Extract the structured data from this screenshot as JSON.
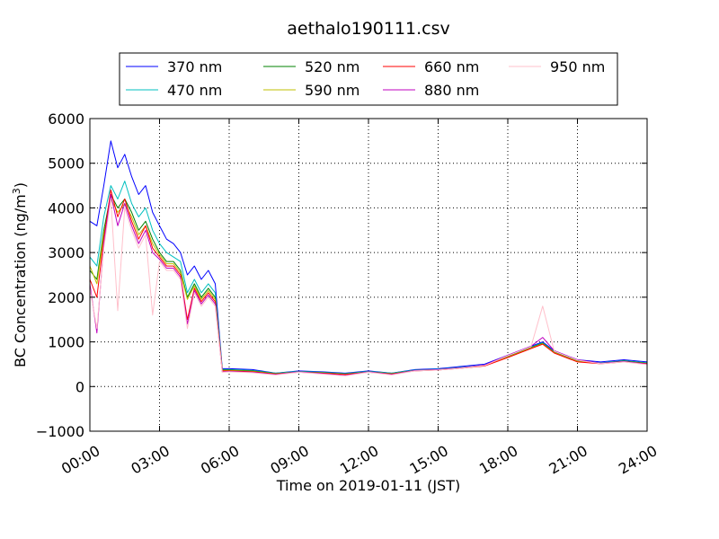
{
  "chart_data": {
    "type": "line",
    "title": "aethalo190111.csv",
    "xlabel": "Time on 2019-01-11 (JST)",
    "ylabel": "BC Concentration (ng/m",
    "ylabel_superscript": "3",
    "ylabel_suffix": ")",
    "xlim": [
      0,
      24
    ],
    "ylim": [
      -1000,
      6000
    ],
    "x_ticks": [
      0,
      3,
      6,
      9,
      12,
      15,
      18,
      21,
      24
    ],
    "x_tick_labels": [
      "00:00",
      "03:00",
      "06:00",
      "09:00",
      "12:00",
      "15:00",
      "18:00",
      "21:00",
      "24:00"
    ],
    "y_ticks": [
      -1000,
      0,
      1000,
      2000,
      3000,
      4000,
      5000,
      6000
    ],
    "y_tick_labels": [
      "−1000",
      "0",
      "1000",
      "2000",
      "3000",
      "4000",
      "5000",
      "6000"
    ],
    "grid": true,
    "legend_position": "top",
    "series": [
      {
        "name": "370 nm",
        "color": "#0000ff",
        "x": [
          0,
          0.3,
          0.6,
          0.9,
          1.2,
          1.5,
          1.8,
          2.1,
          2.4,
          2.7,
          3.0,
          3.3,
          3.6,
          3.9,
          4.2,
          4.5,
          4.8,
          5.1,
          5.4,
          5.7,
          6.0,
          7.0,
          8.0,
          9.0,
          10.0,
          11.0,
          12.0,
          13.0,
          14.0,
          15.0,
          16.0,
          17.0,
          18.0,
          19.0,
          19.5,
          20.0,
          21.0,
          22.0,
          23.0,
          24.0
        ],
        "y": [
          3700,
          3600,
          4500,
          5500,
          4900,
          5200,
          4700,
          4300,
          4500,
          3900,
          3600,
          3300,
          3200,
          3000,
          2500,
          2700,
          2400,
          2600,
          2300,
          400,
          400,
          380,
          300,
          350,
          330,
          300,
          350,
          300,
          380,
          400,
          450,
          500,
          700,
          900,
          1000,
          800,
          600,
          550,
          600,
          550
        ]
      },
      {
        "name": "470 nm",
        "color": "#00bfbf",
        "x": [
          0,
          0.3,
          0.6,
          0.9,
          1.2,
          1.5,
          1.8,
          2.1,
          2.4,
          2.7,
          3.0,
          3.3,
          3.6,
          3.9,
          4.2,
          4.5,
          4.8,
          5.1,
          5.4,
          5.7,
          6.0,
          7.0,
          8.0,
          9.0,
          10.0,
          11.0,
          12.0,
          13.0,
          14.0,
          15.0,
          16.0,
          17.0,
          18.0,
          19.0,
          19.5,
          20.0,
          21.0,
          22.0,
          23.0,
          24.0
        ],
        "y": [
          2900,
          2700,
          3800,
          4500,
          4200,
          4600,
          4100,
          3800,
          4000,
          3500,
          3200,
          3000,
          2900,
          2800,
          2100,
          2400,
          2100,
          2300,
          2100,
          380,
          380,
          360,
          300,
          340,
          320,
          290,
          340,
          300,
          370,
          390,
          430,
          480,
          680,
          880,
          980,
          780,
          580,
          530,
          580,
          530
        ]
      },
      {
        "name": "520 nm",
        "color": "#008000",
        "x": [
          0,
          0.3,
          0.6,
          0.9,
          1.2,
          1.5,
          1.8,
          2.1,
          2.4,
          2.7,
          3.0,
          3.3,
          3.6,
          3.9,
          4.2,
          4.5,
          4.8,
          5.1,
          5.4,
          5.7,
          6.0,
          7.0,
          8.0,
          9.0,
          10.0,
          11.0,
          12.0,
          13.0,
          14.0,
          15.0,
          16.0,
          17.0,
          18.0,
          19.0,
          19.5,
          20.0,
          21.0,
          22.0,
          23.0,
          24.0
        ],
        "y": [
          2600,
          2400,
          3500,
          4300,
          4000,
          4200,
          3900,
          3500,
          3700,
          3300,
          3000,
          2800,
          2800,
          2600,
          2000,
          2300,
          2000,
          2200,
          2000,
          370,
          370,
          350,
          290,
          330,
          310,
          280,
          330,
          290,
          360,
          380,
          420,
          470,
          670,
          870,
          970,
          770,
          570,
          520,
          570,
          520
        ]
      },
      {
        "name": "590 nm",
        "color": "#bfbf00",
        "x": [
          0,
          0.3,
          0.6,
          0.9,
          1.2,
          1.5,
          1.8,
          2.1,
          2.4,
          2.7,
          3.0,
          3.3,
          3.6,
          3.9,
          4.2,
          4.5,
          4.8,
          5.1,
          5.4,
          5.7,
          6.0,
          7.0,
          8.0,
          9.0,
          10.0,
          11.0,
          12.0,
          13.0,
          14.0,
          15.0,
          16.0,
          17.0,
          18.0,
          19.0,
          19.5,
          20.0,
          21.0,
          22.0,
          23.0,
          24.0
        ],
        "y": [
          2700,
          2300,
          3400,
          4200,
          3900,
          4100,
          3800,
          3400,
          3600,
          3200,
          2950,
          2750,
          2750,
          2550,
          1950,
          2250,
          1950,
          2150,
          1950,
          360,
          360,
          340,
          285,
          325,
          305,
          275,
          325,
          285,
          355,
          375,
          415,
          465,
          660,
          860,
          960,
          760,
          560,
          515,
          560,
          515
        ]
      },
      {
        "name": "660 nm",
        "color": "#ff0000",
        "x": [
          0,
          0.3,
          0.6,
          0.9,
          1.2,
          1.5,
          1.8,
          2.1,
          2.4,
          2.7,
          3.0,
          3.3,
          3.6,
          3.9,
          4.2,
          4.5,
          4.8,
          5.1,
          5.4,
          5.7,
          6.0,
          7.0,
          8.0,
          9.0,
          10.0,
          11.0,
          12.0,
          13.0,
          14.0,
          15.0,
          16.0,
          17.0,
          18.0,
          19.0,
          19.5,
          20.0,
          21.0,
          22.0,
          23.0,
          24.0
        ],
        "y": [
          2400,
          2000,
          3300,
          4400,
          3800,
          4200,
          3700,
          3300,
          3600,
          3100,
          2900,
          2700,
          2700,
          2500,
          1500,
          2200,
          1900,
          2100,
          1900,
          350,
          350,
          330,
          280,
          320,
          300,
          270,
          320,
          280,
          350,
          370,
          410,
          460,
          650,
          850,
          950,
          750,
          550,
          510,
          550,
          510
        ]
      },
      {
        "name": "880 nm",
        "color": "#bf00bf",
        "x": [
          0,
          0.3,
          0.6,
          0.9,
          1.2,
          1.5,
          1.8,
          2.1,
          2.4,
          2.7,
          3.0,
          3.3,
          3.6,
          3.9,
          4.2,
          4.5,
          4.8,
          5.1,
          5.4,
          5.7,
          6.0,
          7.0,
          8.0,
          9.0,
          10.0,
          11.0,
          12.0,
          13.0,
          14.0,
          15.0,
          16.0,
          17.0,
          18.0,
          19.0,
          19.5,
          20.0,
          21.0,
          22.0,
          23.0,
          24.0
        ],
        "y": [
          2300,
          1200,
          3200,
          4300,
          3600,
          4100,
          3600,
          3200,
          3500,
          3000,
          2850,
          2650,
          2650,
          2450,
          1400,
          2150,
          1850,
          2050,
          1850,
          330,
          340,
          320,
          270,
          330,
          290,
          250,
          330,
          270,
          360,
          380,
          420,
          480,
          700,
          900,
          1100,
          800,
          600,
          520,
          560,
          500
        ]
      },
      {
        "name": "950 nm",
        "color": "#ffc0cb",
        "x": [
          0,
          0.3,
          0.6,
          0.9,
          1.2,
          1.5,
          1.8,
          2.1,
          2.4,
          2.7,
          3.0,
          3.3,
          3.6,
          3.9,
          4.2,
          4.5,
          4.8,
          5.1,
          5.4,
          5.7,
          6.0,
          7.0,
          8.0,
          9.0,
          10.0,
          11.0,
          12.0,
          13.0,
          14.0,
          15.0,
          16.0,
          17.0,
          18.0,
          19.0,
          19.5,
          20.0,
          21.0,
          22.0,
          23.0,
          24.0
        ],
        "y": [
          2200,
          1300,
          3100,
          4200,
          1700,
          4000,
          3500,
          3100,
          3400,
          1600,
          2800,
          2600,
          2600,
          2400,
          1300,
          2100,
          1800,
          2000,
          1800,
          320,
          330,
          310,
          260,
          320,
          280,
          240,
          320,
          260,
          350,
          370,
          410,
          470,
          690,
          890,
          1800,
          790,
          590,
          510,
          550,
          490
        ]
      }
    ]
  }
}
